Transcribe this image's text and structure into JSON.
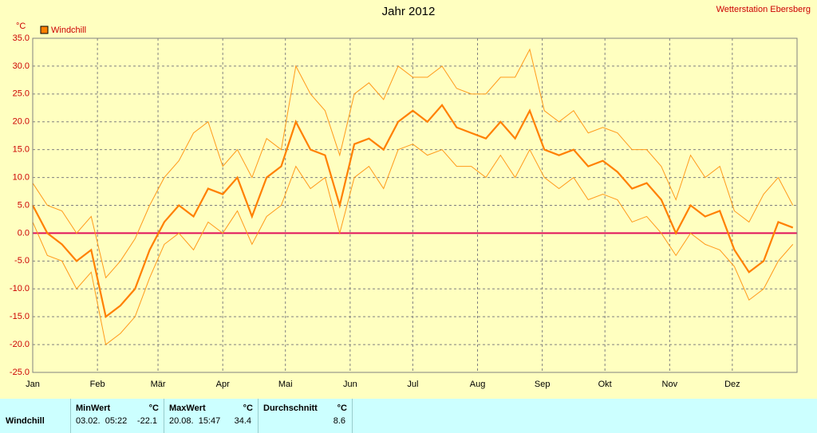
{
  "chart_data": {
    "type": "line",
    "title": "Jahr 2012",
    "station": "Wetterstation Ebersberg",
    "y_unit": "°C",
    "x": [
      0,
      7,
      14,
      21,
      28,
      35,
      42,
      49,
      56,
      63,
      70,
      77,
      84,
      91,
      98,
      105,
      112,
      119,
      126,
      133,
      140,
      147,
      154,
      161,
      168,
      175,
      182,
      189,
      196,
      203,
      210,
      217,
      224,
      231,
      238,
      245,
      252,
      259,
      266,
      273,
      280,
      287,
      294,
      301,
      308,
      315,
      322,
      329,
      336,
      343,
      350,
      357,
      364
    ],
    "series": [
      {
        "name": "Windchill",
        "color": "#ff8000",
        "values": [
          5,
          0,
          -2,
          -5,
          -3,
          -15,
          -13,
          -10,
          -3,
          2,
          5,
          3,
          8,
          7,
          10,
          3,
          10,
          12,
          20,
          15,
          14,
          5,
          16,
          17,
          15,
          20,
          22,
          20,
          23,
          19,
          18,
          17,
          20,
          17,
          22,
          15,
          14,
          15,
          12,
          13,
          11,
          8,
          9,
          6,
          0,
          5,
          3,
          4,
          -3,
          -7,
          -5,
          2,
          1
        ]
      },
      {
        "color": "#ff9a1a",
        "values": [
          9,
          5,
          4,
          0,
          3,
          -8,
          -5,
          -1,
          5,
          10,
          13,
          18,
          20,
          12,
          15,
          10,
          17,
          15,
          30,
          25,
          22,
          14,
          25,
          27,
          24,
          30,
          28,
          28,
          30,
          26,
          25,
          25,
          28,
          28,
          33,
          22,
          20,
          22,
          18,
          19,
          18,
          15,
          15,
          12,
          6,
          14,
          10,
          12,
          4,
          2,
          7,
          10,
          5
        ]
      },
      {
        "color": "#ff9a1a",
        "values": [
          2,
          -4,
          -5,
          -10,
          -7,
          -20,
          -18,
          -15,
          -8,
          -2,
          0,
          -3,
          2,
          0,
          4,
          -2,
          3,
          5,
          12,
          8,
          10,
          0,
          10,
          12,
          8,
          15,
          16,
          14,
          15,
          12,
          12,
          10,
          14,
          10,
          15,
          10,
          8,
          10,
          6,
          7,
          6,
          2,
          3,
          0,
          -4,
          0,
          -2,
          -3,
          -6,
          -12,
          -10,
          -5,
          -2
        ]
      }
    ],
    "xlim": [
      0,
      366
    ],
    "xticks": [
      {
        "value": 0,
        "label": "Jan"
      },
      {
        "value": 31,
        "label": "Feb"
      },
      {
        "value": 60,
        "label": "Mär"
      },
      {
        "value": 91,
        "label": "Apr"
      },
      {
        "value": 121,
        "label": "Mai"
      },
      {
        "value": 152,
        "label": "Jun"
      },
      {
        "value": 182,
        "label": "Jul"
      },
      {
        "value": 213,
        "label": "Aug"
      },
      {
        "value": 244,
        "label": "Sep"
      },
      {
        "value": 274,
        "label": "Okt"
      },
      {
        "value": 305,
        "label": "Nov"
      },
      {
        "value": 335,
        "label": "Dez"
      }
    ],
    "ylim": [
      -25,
      35
    ],
    "yticks": [
      {
        "value": -25,
        "label": "-25.0"
      },
      {
        "value": -20,
        "label": "-20.0"
      },
      {
        "value": -15,
        "label": "-15.0"
      },
      {
        "value": -10,
        "label": "-10.0"
      },
      {
        "value": -5,
        "label": "-5.0"
      },
      {
        "value": 0,
        "label": "0.0"
      },
      {
        "value": 5,
        "label": "5.0"
      },
      {
        "value": 10,
        "label": "10.0"
      },
      {
        "value": 15,
        "label": "15.0"
      },
      {
        "value": 20,
        "label": "20.0"
      },
      {
        "value": 25,
        "label": "25.0"
      },
      {
        "value": 30,
        "label": "30.0"
      },
      {
        "value": 35,
        "label": "35.0"
      }
    ],
    "grid": true
  },
  "table": {
    "header": [
      "MinWert",
      "°C",
      "MaxWert",
      "°C",
      "Durchschnitt",
      "°C"
    ],
    "rows": [
      [
        "Windchill",
        "03.02.  05:22",
        "-22.1",
        "20.08.  15:47",
        "34.4",
        "8.6"
      ]
    ]
  }
}
